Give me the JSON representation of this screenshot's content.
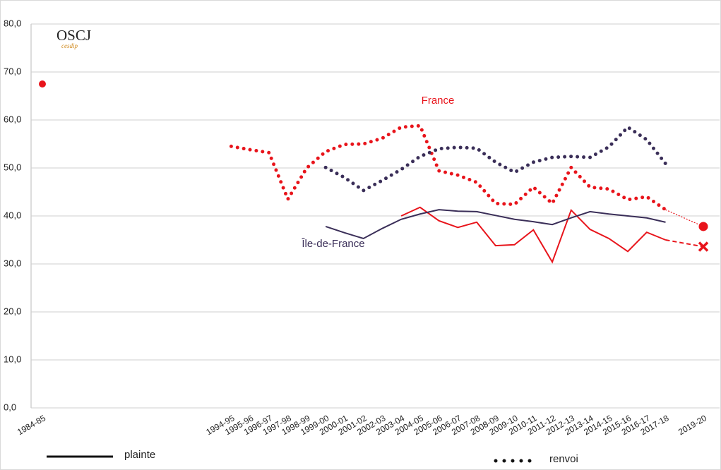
{
  "chart_data": {
    "type": "line",
    "logo": "OSCJ",
    "logo_sub": "cesdip",
    "categories": [
      "1984-85",
      null,
      null,
      null,
      null,
      null,
      null,
      null,
      null,
      null,
      "1994-95",
      "1995-96",
      "1996-97",
      "1997-98",
      "1998-99",
      "1999-00",
      "2000-01",
      "2001-02",
      "2002-03",
      "2003-04",
      "2004-05",
      "2005-06",
      "2006-07",
      "2007-08",
      "2008-09",
      "2009-10",
      "2010-11",
      "2011-12",
      "2012-13",
      "2013-14",
      "2014-15",
      "2015-16",
      "2016-17",
      "2017-18",
      null,
      "2019-20"
    ],
    "ylim": [
      0,
      80
    ],
    "yticks": [
      {
        "value": 0,
        "label": "0,0"
      },
      {
        "value": 10,
        "label": "10,0"
      },
      {
        "value": 20,
        "label": "20,0"
      },
      {
        "value": 30,
        "label": "30,0"
      },
      {
        "value": 40,
        "label": "40,0"
      },
      {
        "value": 50,
        "label": "50,0"
      },
      {
        "value": 60,
        "label": "60,0"
      },
      {
        "value": 70,
        "label": "70,0"
      },
      {
        "value": 80,
        "label": "80,0"
      }
    ],
    "grid": true,
    "series": [
      {
        "color": "#e8141b",
        "style": "dotted",
        "bridge": "dotted",
        "end_marker": "circle",
        "values": [
          67.5,
          null,
          null,
          null,
          null,
          null,
          null,
          null,
          null,
          null,
          54.5,
          53.8,
          53.2,
          43.5,
          50,
          53.4,
          54.9,
          55,
          56.2,
          58.5,
          58.8,
          49.4,
          48.5,
          47,
          42.6,
          42.4,
          46,
          42.6,
          50.1,
          46,
          45.6,
          43.4,
          44,
          41.3,
          null,
          37.8
        ]
      },
      {
        "color": "#3a2e58",
        "style": "dotted",
        "values": [
          null,
          null,
          null,
          null,
          null,
          null,
          null,
          null,
          null,
          null,
          null,
          null,
          null,
          null,
          null,
          50.1,
          48,
          45.3,
          47.4,
          49.7,
          52.4,
          54,
          54.3,
          54.1,
          51.2,
          49.1,
          51.2,
          52.2,
          52.4,
          52.2,
          54.4,
          58.5,
          55.9,
          50.9,
          null,
          null
        ]
      },
      {
        "color": "#e8141b",
        "style": "solid",
        "bridge": "dashed",
        "end_marker": "cross",
        "values": [
          null,
          null,
          null,
          null,
          null,
          null,
          null,
          null,
          null,
          null,
          null,
          null,
          null,
          null,
          null,
          null,
          null,
          null,
          null,
          40,
          41.8,
          39,
          37.6,
          38.7,
          33.8,
          34,
          37.1,
          30.4,
          41.2,
          37.2,
          35.3,
          32.6,
          36.6,
          35,
          null,
          33.6
        ]
      },
      {
        "color": "#3a2e58",
        "style": "solid",
        "values": [
          null,
          null,
          null,
          null,
          null,
          null,
          null,
          null,
          null,
          null,
          null,
          null,
          null,
          null,
          null,
          37.8,
          36.5,
          35.3,
          37.4,
          39.3,
          40.4,
          41.3,
          41,
          40.9,
          40.1,
          39.3,
          38.8,
          38.2,
          39.6,
          40.9,
          40.4,
          40,
          39.6,
          38.7,
          null,
          null
        ]
      }
    ],
    "annotations": [
      {
        "text": "France",
        "color": "#e8141b"
      },
      {
        "text": "Île-de-France",
        "color": "#3a2e58"
      }
    ],
    "legend": [
      {
        "label": "plainte",
        "style": "solid"
      },
      {
        "label": "renvoi",
        "style": "dotted"
      }
    ]
  }
}
